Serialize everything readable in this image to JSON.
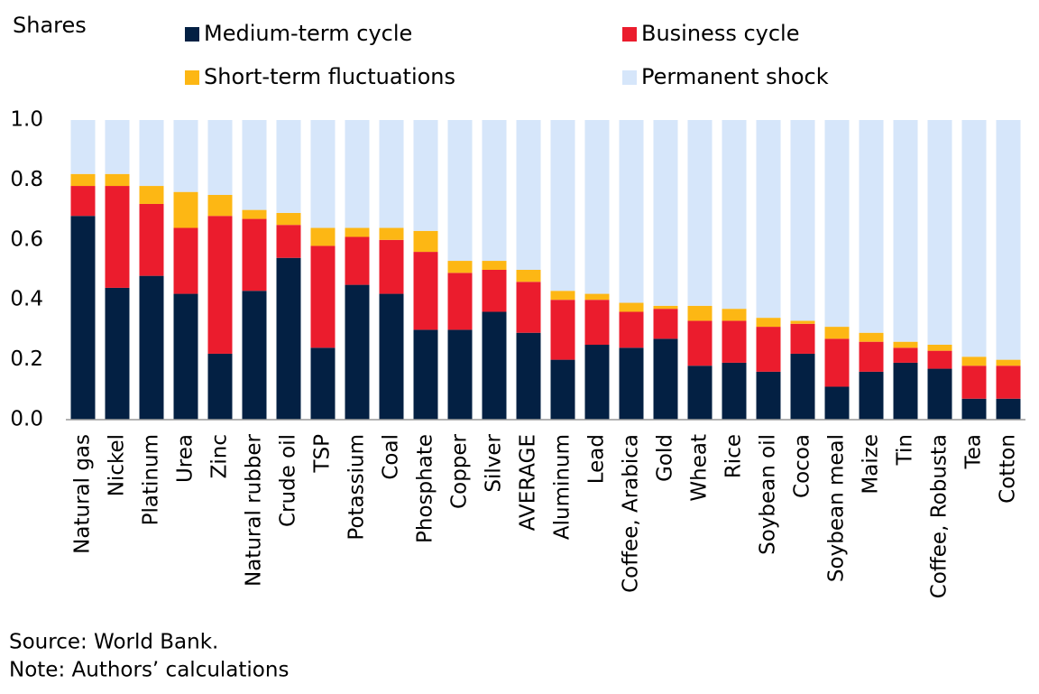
{
  "chart_data": {
    "type": "stacked_bar",
    "y_label": "Shares",
    "categories": [
      "Natural gas",
      "Nickel",
      "Platinum",
      "Urea",
      "Zinc",
      "Natural rubber",
      "Crude oil",
      "TSP",
      "Potassium",
      "Coal",
      "Phosphate",
      "Copper",
      "Silver",
      "AVERAGE",
      "Aluminum",
      "Lead",
      "Coffee, Arabica",
      "Gold",
      "Wheat",
      "Rice",
      "Soybean oil",
      "Cocoa",
      "Soybean meal",
      "Maize",
      "Tin",
      "Coffee, Robusta",
      "Tea",
      "Cotton"
    ],
    "series": [
      {
        "name": "Medium-term cycle",
        "color": "#032043",
        "values": [
          0.68,
          0.44,
          0.48,
          0.42,
          0.22,
          0.43,
          0.54,
          0.24,
          0.45,
          0.42,
          0.3,
          0.3,
          0.36,
          0.29,
          0.2,
          0.25,
          0.24,
          0.27,
          0.18,
          0.19,
          0.16,
          0.22,
          0.11,
          0.16,
          0.19,
          0.17,
          0.07,
          0.07
        ]
      },
      {
        "name": "Business cycle",
        "color": "#eb1c2d",
        "values": [
          0.1,
          0.34,
          0.24,
          0.22,
          0.46,
          0.24,
          0.11,
          0.34,
          0.16,
          0.18,
          0.26,
          0.19,
          0.14,
          0.17,
          0.2,
          0.15,
          0.12,
          0.1,
          0.15,
          0.14,
          0.15,
          0.1,
          0.16,
          0.1,
          0.05,
          0.06,
          0.11,
          0.11
        ]
      },
      {
        "name": "Short-term fluctuations",
        "color": "#fdb714",
        "values": [
          0.04,
          0.04,
          0.06,
          0.12,
          0.07,
          0.03,
          0.04,
          0.06,
          0.03,
          0.04,
          0.07,
          0.04,
          0.03,
          0.04,
          0.03,
          0.02,
          0.03,
          0.01,
          0.05,
          0.04,
          0.03,
          0.01,
          0.04,
          0.03,
          0.02,
          0.02,
          0.03,
          0.02
        ]
      },
      {
        "name": "Permanent shock",
        "color": "#d6e6fa",
        "values": [
          0.18,
          0.18,
          0.22,
          0.24,
          0.25,
          0.3,
          0.31,
          0.36,
          0.36,
          0.36,
          0.37,
          0.47,
          0.47,
          0.5,
          0.57,
          0.58,
          0.61,
          0.62,
          0.62,
          0.63,
          0.66,
          0.67,
          0.69,
          0.71,
          0.74,
          0.75,
          0.79,
          0.8
        ]
      }
    ],
    "ylim": [
      0,
      1
    ],
    "yticks": [
      {
        "value": 0,
        "label": "0.0"
      },
      0.2,
      0.4,
      0.6,
      0.8,
      {
        "value": 1,
        "label": "1.0"
      }
    ],
    "grid": false,
    "source": "Source: World Bank.",
    "note": "Note: Authors’ calculations"
  }
}
